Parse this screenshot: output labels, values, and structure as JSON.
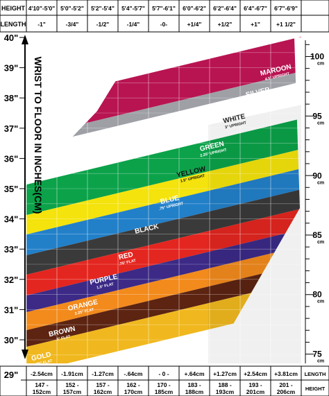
{
  "chart_data": {
    "type": "table",
    "top_row_label": "HEIGHT",
    "second_row_label": "LENGTH",
    "bottom_row_label": "LENGTH",
    "bottom_height_label": "HEIGHT",
    "heights": [
      "4'10\"-5'0\"",
      "5'0\"-5'2\"",
      "5'2\"-5'4\"",
      "5'4\"-5'7\"",
      "5'7\"-6'1\"",
      "6'0\"-6'2\"",
      "6'2\"-6'4\"",
      "6'4\"-6'7\"",
      "6'7\"-6'9\""
    ],
    "length_adjust_in": [
      "-1\"",
      "-3/4\"",
      "-1/2\"",
      "-1/4\"",
      "-0-",
      "+1/4\"",
      "+1/2\"",
      "+1\"",
      "+1 1/2\""
    ],
    "length_adjust_cm": [
      "-2.54cm",
      "-1.91cm",
      "-1.27cm",
      "-.64cm",
      "- 0 -",
      "+.64cm",
      "+1.27cm",
      "+2.54cm",
      "+3.81cm"
    ],
    "heights_cm_top": [
      "147 -",
      "152 -",
      "157 -",
      "162 -",
      "170 -",
      "183 -",
      "188 -",
      "193 -",
      "201 -"
    ],
    "heights_cm_bottom": [
      "152cm",
      "157cm",
      "162cm",
      "170cm",
      "185cm",
      "188cm",
      "193cm",
      "201cm",
      "206cm"
    ],
    "y_axis_label": "WRIST TO FLOOR IN INCHES(CM)",
    "y_ticks_in": [
      "40\"",
      "39\"",
      "38\"",
      "37\"",
      "36\"",
      "35\"",
      "34\"",
      "33\"",
      "32\"",
      "31\"",
      "30\"",
      "29\""
    ],
    "y_ticks_in_values": [
      40,
      39,
      38,
      37,
      36,
      35,
      34,
      33,
      32,
      31,
      30,
      29
    ],
    "y_range_in": [
      29,
      40
    ],
    "cm_ticks": [
      {
        "label": "100",
        "unit": "cm",
        "value_in": 39.37
      },
      {
        "label": "95",
        "unit": "cm",
        "value_in": 37.4
      },
      {
        "label": "90",
        "unit": "cm",
        "value_in": 35.43
      },
      {
        "label": "85",
        "unit": "cm",
        "value_in": 33.46
      },
      {
        "label": "80",
        "unit": "cm",
        "value_in": 31.5
      },
      {
        "label": "75",
        "unit": "cm",
        "value_in": 29.53
      }
    ],
    "bands": [
      {
        "name": "MAROON",
        "sub": "4.5° UPRIGHT",
        "color": "#b81452",
        "text_color": "#ffffff"
      },
      {
        "name": "SILVER",
        "sub": "3.75° UPRIGHT",
        "color": "#9ea0a6",
        "text_color": "#ffffff"
      },
      {
        "name": "WHITE",
        "sub": "3° UPRIGHT",
        "color": "#ffffff",
        "text_color": "#222222"
      },
      {
        "name": "GREEN",
        "sub": "2.25° UPRIGHT",
        "color": "#0ca24a",
        "text_color": "#ffffff"
      },
      {
        "name": "YELLOW",
        "sub": "1.5° UPRIGHT",
        "color": "#f4e30c",
        "text_color": "#111111"
      },
      {
        "name": "BLUE",
        "sub": ".75° UPRIGHT",
        "color": "#2280c9",
        "text_color": "#ffffff"
      },
      {
        "name": "BLACK",
        "sub": "",
        "color": "#3a3a3a",
        "text_color": "#ffffff"
      },
      {
        "name": "RED",
        "sub": ".75° FLAT",
        "color": "#e3261f",
        "text_color": "#ffffff"
      },
      {
        "name": "PURPLE",
        "sub": "1.5° FLAT",
        "color": "#3c2a86",
        "text_color": "#ffffff"
      },
      {
        "name": "ORANGE",
        "sub": "2.25° FLAT",
        "color": "#f28a1c",
        "text_color": "#ffffff"
      },
      {
        "name": "BROWN",
        "sub": "3° FLAT",
        "color": "#5c2411",
        "text_color": "#ffffff"
      },
      {
        "name": "GOLD",
        "sub": "3.75° FLAT",
        "color": "#f0b81e",
        "text_color": "#ffffff"
      }
    ],
    "grid": true
  }
}
